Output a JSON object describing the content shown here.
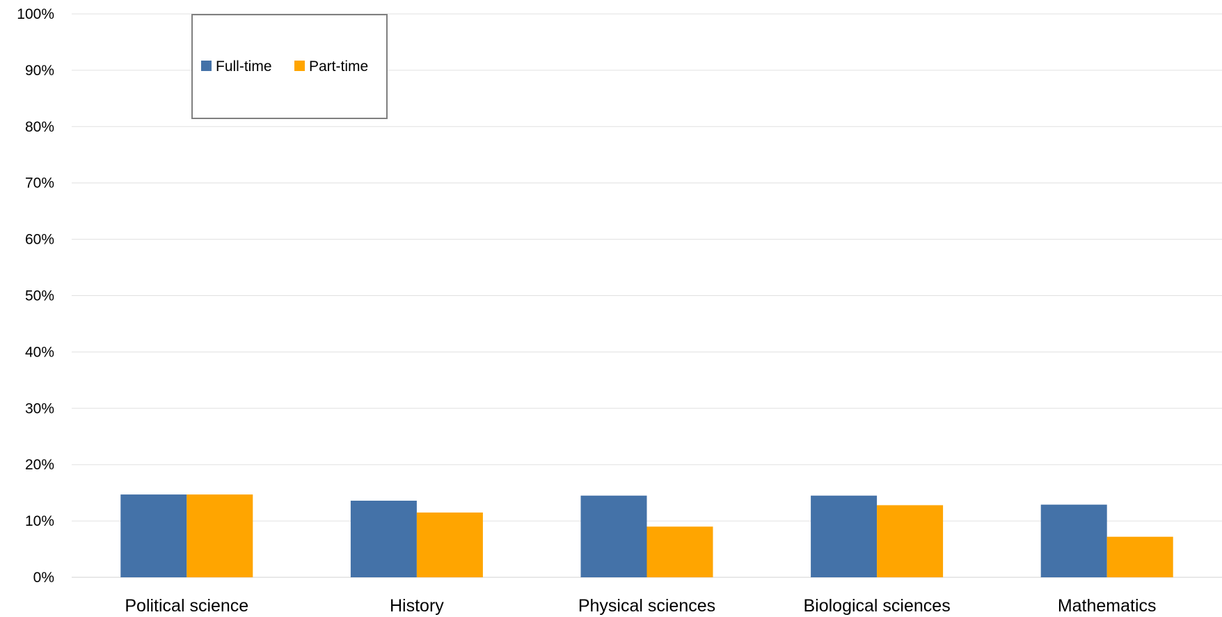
{
  "chart_data": {
    "type": "bar",
    "title": "",
    "xlabel": "",
    "ylabel": "",
    "categories": [
      "Political science",
      "History",
      "Physical sciences",
      "Biological sciences",
      "Mathematics"
    ],
    "series": [
      {
        "name": "Full-time",
        "color": "#4472a8",
        "values": [
          14.7,
          13.6,
          14.5,
          14.5,
          12.9
        ]
      },
      {
        "name": "Part-time",
        "color": "#ffa500",
        "values": [
          14.7,
          11.5,
          9.0,
          12.8,
          7.2
        ]
      }
    ],
    "ylim": [
      0,
      100
    ],
    "y_ticks": [
      "0%",
      "10%",
      "20%",
      "30%",
      "40%",
      "50%",
      "60%",
      "70%",
      "80%",
      "90%",
      "100%"
    ],
    "grid": true,
    "legend_position": "top-left"
  }
}
